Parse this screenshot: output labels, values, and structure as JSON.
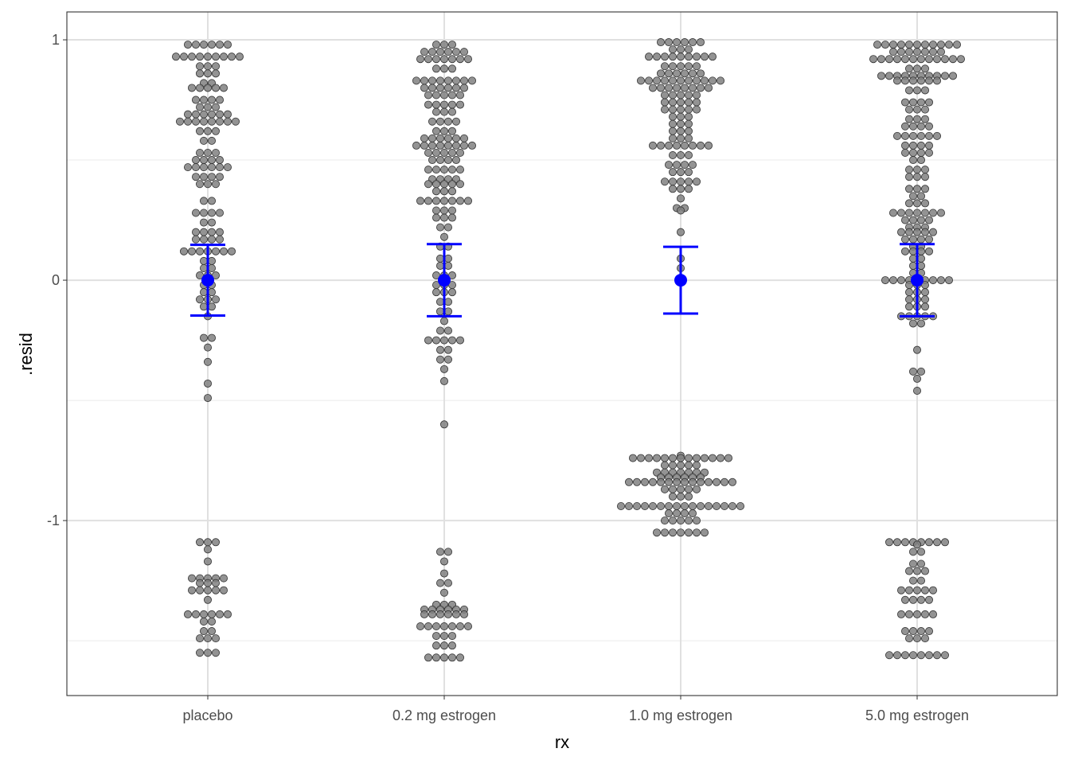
{
  "chart_data": {
    "type": "scatter",
    "subtype": "beeswarm with mean and error bars",
    "xlabel": "rx",
    "ylabel": ".resid",
    "ylim": [
      -1.728,
      1.116
    ],
    "yticks": [
      -1,
      0,
      1
    ],
    "ytick_labels": [
      "-1",
      "0",
      "1"
    ],
    "grid": true,
    "point_color": "#808080",
    "summary_color": "#0000FF",
    "categories": [
      "placebo",
      "0.2 mg estrogen",
      "1.0 mg estrogen",
      "5.0 mg estrogen"
    ],
    "summary": [
      {
        "mean": 0,
        "lower": -0.147,
        "upper": 0.147
      },
      {
        "mean": 0,
        "lower": -0.15,
        "upper": 0.15
      },
      {
        "mean": 0,
        "lower": -0.139,
        "upper": 0.139
      },
      {
        "mean": 0,
        "lower": -0.15,
        "upper": 0.15
      }
    ],
    "points_note": "[resid, count]",
    "points": [
      [
        [
          0.98,
          6
        ],
        [
          0.93,
          9
        ],
        [
          0.89,
          3
        ],
        [
          0.86,
          3
        ],
        [
          0.82,
          2
        ],
        [
          0.8,
          5
        ],
        [
          0.75,
          4
        ],
        [
          0.72,
          3
        ],
        [
          0.69,
          6
        ],
        [
          0.66,
          8
        ],
        [
          0.62,
          3
        ],
        [
          0.58,
          2
        ],
        [
          0.53,
          3
        ],
        [
          0.5,
          4
        ],
        [
          0.47,
          6
        ],
        [
          0.43,
          4
        ],
        [
          0.4,
          3
        ],
        [
          0.33,
          2
        ],
        [
          0.28,
          4
        ],
        [
          0.24,
          2
        ],
        [
          0.2,
          4
        ],
        [
          0.17,
          4
        ],
        [
          0.12,
          7
        ],
        [
          0.08,
          2
        ],
        [
          0.05,
          2
        ],
        [
          0.02,
          3
        ],
        [
          -0.02,
          2
        ],
        [
          -0.05,
          2
        ],
        [
          -0.08,
          3
        ],
        [
          -0.11,
          2
        ],
        [
          -0.15,
          1
        ],
        [
          -0.24,
          2
        ],
        [
          -0.28,
          1
        ],
        [
          -0.34,
          1
        ],
        [
          -0.43,
          1
        ],
        [
          -0.49,
          1
        ],
        [
          -1.09,
          3
        ],
        [
          -1.12,
          1
        ],
        [
          -1.17,
          1
        ],
        [
          -1.24,
          5
        ],
        [
          -1.26,
          3
        ],
        [
          -1.29,
          5
        ],
        [
          -1.33,
          1
        ],
        [
          -1.39,
          6
        ],
        [
          -1.42,
          2
        ],
        [
          -1.46,
          2
        ],
        [
          -1.49,
          3
        ],
        [
          -1.55,
          3
        ]
      ],
      [
        [
          0.98,
          3
        ],
        [
          0.95,
          6
        ],
        [
          0.92,
          7
        ],
        [
          0.88,
          3
        ],
        [
          0.83,
          8
        ],
        [
          0.8,
          6
        ],
        [
          0.77,
          5
        ],
        [
          0.73,
          5
        ],
        [
          0.7,
          3
        ],
        [
          0.66,
          4
        ],
        [
          0.62,
          3
        ],
        [
          0.59,
          6
        ],
        [
          0.56,
          8
        ],
        [
          0.53,
          5
        ],
        [
          0.5,
          4
        ],
        [
          0.46,
          5
        ],
        [
          0.42,
          4
        ],
        [
          0.4,
          5
        ],
        [
          0.37,
          3
        ],
        [
          0.33,
          7
        ],
        [
          0.29,
          3
        ],
        [
          0.26,
          3
        ],
        [
          0.22,
          2
        ],
        [
          0.18,
          1
        ],
        [
          0.14,
          2
        ],
        [
          0.09,
          2
        ],
        [
          0.06,
          2
        ],
        [
          0.02,
          3
        ],
        [
          -0.02,
          3
        ],
        [
          -0.05,
          3
        ],
        [
          -0.09,
          2
        ],
        [
          -0.13,
          2
        ],
        [
          -0.17,
          1
        ],
        [
          -0.21,
          2
        ],
        [
          -0.25,
          5
        ],
        [
          -0.29,
          2
        ],
        [
          -0.33,
          2
        ],
        [
          -0.37,
          1
        ],
        [
          -0.42,
          1
        ],
        [
          -0.6,
          1
        ],
        [
          -1.13,
          2
        ],
        [
          -1.17,
          1
        ],
        [
          -1.22,
          1
        ],
        [
          -1.26,
          2
        ],
        [
          -1.3,
          1
        ],
        [
          -1.35,
          3
        ],
        [
          -1.37,
          6
        ],
        [
          -1.39,
          6
        ],
        [
          -1.44,
          7
        ],
        [
          -1.48,
          3
        ],
        [
          -1.52,
          3
        ],
        [
          -1.57,
          5
        ]
      ],
      [
        [
          0.99,
          6
        ],
        [
          0.96,
          3
        ],
        [
          0.93,
          9
        ],
        [
          0.89,
          5
        ],
        [
          0.86,
          6
        ],
        [
          0.83,
          11
        ],
        [
          0.8,
          8
        ],
        [
          0.77,
          5
        ],
        [
          0.74,
          5
        ],
        [
          0.71,
          5
        ],
        [
          0.68,
          3
        ],
        [
          0.65,
          3
        ],
        [
          0.62,
          3
        ],
        [
          0.59,
          3
        ],
        [
          0.56,
          8
        ],
        [
          0.52,
          3
        ],
        [
          0.48,
          4
        ],
        [
          0.45,
          3
        ],
        [
          0.41,
          5
        ],
        [
          0.38,
          3
        ],
        [
          0.34,
          1
        ],
        [
          0.3,
          2
        ],
        [
          0.29,
          1
        ],
        [
          0.2,
          1
        ],
        [
          0.09,
          1
        ],
        [
          0.05,
          1
        ],
        [
          -0.73,
          1
        ],
        [
          -0.74,
          13
        ],
        [
          -0.77,
          5
        ],
        [
          -0.8,
          7
        ],
        [
          -0.82,
          6
        ],
        [
          -0.84,
          14
        ],
        [
          -0.87,
          5
        ],
        [
          -0.9,
          3
        ],
        [
          -0.94,
          16
        ],
        [
          -0.97,
          4
        ],
        [
          -1.0,
          5
        ],
        [
          -1.05,
          7
        ]
      ],
      [
        [
          0.98,
          11
        ],
        [
          0.95,
          7
        ],
        [
          0.92,
          12
        ],
        [
          0.88,
          3
        ],
        [
          0.85,
          10
        ],
        [
          0.83,
          6
        ],
        [
          0.79,
          3
        ],
        [
          0.74,
          4
        ],
        [
          0.71,
          3
        ],
        [
          0.67,
          3
        ],
        [
          0.64,
          4
        ],
        [
          0.6,
          6
        ],
        [
          0.56,
          4
        ],
        [
          0.53,
          4
        ],
        [
          0.5,
          2
        ],
        [
          0.46,
          3
        ],
        [
          0.43,
          3
        ],
        [
          0.38,
          3
        ],
        [
          0.35,
          2
        ],
        [
          0.32,
          3
        ],
        [
          0.28,
          7
        ],
        [
          0.25,
          4
        ],
        [
          0.22,
          3
        ],
        [
          0.2,
          5
        ],
        [
          0.17,
          4
        ],
        [
          0.14,
          2
        ],
        [
          0.12,
          4
        ],
        [
          0.09,
          2
        ],
        [
          0.06,
          2
        ],
        [
          0.03,
          2
        ],
        [
          0.0,
          9
        ],
        [
          -0.02,
          3
        ],
        [
          -0.05,
          3
        ],
        [
          -0.08,
          3
        ],
        [
          -0.11,
          3
        ],
        [
          -0.15,
          5
        ],
        [
          -0.18,
          2
        ],
        [
          -0.29,
          1
        ],
        [
          -0.38,
          2
        ],
        [
          -0.41,
          1
        ],
        [
          -0.46,
          1
        ],
        [
          -1.09,
          8
        ],
        [
          -1.1,
          1
        ],
        [
          -1.13,
          2
        ],
        [
          -1.18,
          2
        ],
        [
          -1.21,
          3
        ],
        [
          -1.25,
          2
        ],
        [
          -1.29,
          5
        ],
        [
          -1.33,
          4
        ],
        [
          -1.39,
          5
        ],
        [
          -1.46,
          4
        ],
        [
          -1.49,
          3
        ],
        [
          -1.56,
          8
        ]
      ]
    ]
  }
}
